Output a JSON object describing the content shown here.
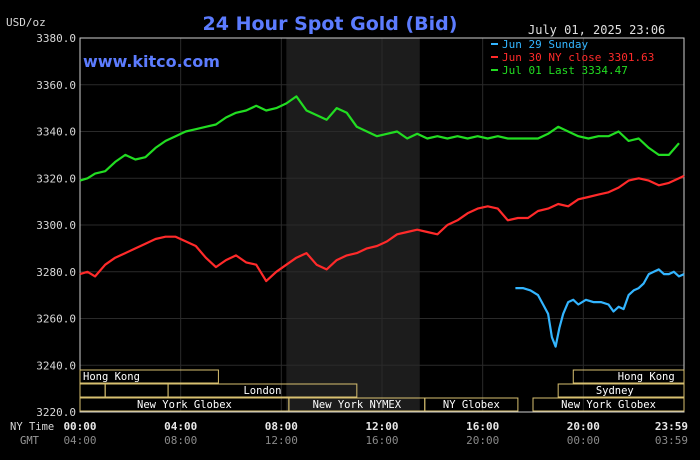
{
  "chart_data": {
    "type": "line",
    "title": "24 Hour Spot Gold (Bid)",
    "ylabel": "USD/oz",
    "brand": "www.kitco.com",
    "timestamp": "July 01, 2025 23:06",
    "ylim": [
      3220,
      3380
    ],
    "yticks": [
      "3220.0",
      "3240.0",
      "3260.0",
      "3280.0",
      "3300.0",
      "3320.0",
      "3340.0",
      "3360.0",
      "3380.0"
    ],
    "xlim_hours": [
      0,
      24
    ],
    "xticks_ny": [
      "00:00",
      "04:00",
      "08:00",
      "12:00",
      "16:00",
      "20:00",
      "23:59"
    ],
    "xticks_gmt": [
      "04:00",
      "08:00",
      "12:00",
      "16:00",
      "20:00",
      "00:00",
      "03:59"
    ],
    "row_label_ny": "NY Time",
    "row_label_gmt": "GMT",
    "grid": true,
    "legend_position": "top-right",
    "colors": {
      "background": "#000000",
      "grid": "#2a2a2a",
      "title": "#5c7cff",
      "brand": "#5c7cff",
      "text": "#d8d8d8",
      "shade": "#1c1c1c",
      "session_box": "#d8c070",
      "session_text": "#ffffff"
    },
    "series": [
      {
        "name": "Jun 29 Sunday",
        "color": "#33b5ff",
        "x": [
          17.3,
          17.6,
          17.9,
          18.2,
          18.4,
          18.6,
          18.75,
          18.9,
          19.05,
          19.2,
          19.4,
          19.6,
          19.8,
          20.1,
          20.4,
          20.7,
          21.0,
          21.2,
          21.4,
          21.6,
          21.8,
          22.0,
          22.2,
          22.4,
          22.6,
          22.8,
          23.0,
          23.2,
          23.4,
          23.6,
          23.8,
          24.0
        ],
        "y": [
          3273,
          3273,
          3272,
          3270,
          3266,
          3262,
          3252,
          3248,
          3256,
          3262,
          3267,
          3268,
          3266,
          3268,
          3267,
          3267,
          3266,
          3263,
          3265,
          3264,
          3270,
          3272,
          3273,
          3275,
          3279,
          3280,
          3281,
          3279,
          3279,
          3280,
          3278,
          3279
        ]
      },
      {
        "name": "Jun 30 NY close 3301.63",
        "color": "#ff2a2a",
        "x": [
          0.0,
          0.3,
          0.6,
          1.0,
          1.4,
          1.8,
          2.2,
          2.6,
          3.0,
          3.4,
          3.8,
          4.2,
          4.6,
          5.0,
          5.4,
          5.8,
          6.2,
          6.6,
          7.0,
          7.4,
          7.8,
          8.2,
          8.6,
          9.0,
          9.4,
          9.8,
          10.2,
          10.6,
          11.0,
          11.4,
          11.8,
          12.2,
          12.6,
          13.0,
          13.4,
          13.8,
          14.2,
          14.6,
          15.0,
          15.4,
          15.8,
          16.2,
          16.6,
          17.0,
          17.4,
          17.8,
          18.2,
          18.6,
          19.0,
          19.4,
          19.8,
          20.2,
          20.6,
          21.0,
          21.4,
          21.8,
          22.2,
          22.6,
          23.0,
          23.4,
          23.8,
          24.0
        ],
        "y": [
          3279,
          3280,
          3278,
          3283,
          3286,
          3288,
          3290,
          3292,
          3294,
          3295,
          3295,
          3293,
          3291,
          3286,
          3282,
          3285,
          3287,
          3284,
          3283,
          3276,
          3280,
          3283,
          3286,
          3288,
          3283,
          3281,
          3285,
          3287,
          3288,
          3290,
          3291,
          3293,
          3296,
          3297,
          3298,
          3297,
          3296,
          3300,
          3302,
          3305,
          3307,
          3308,
          3307,
          3302,
          3303,
          3303,
          3306,
          3307,
          3309,
          3308,
          3311,
          3312,
          3313,
          3314,
          3316,
          3319,
          3320,
          3319,
          3317,
          3318,
          3320,
          3321
        ]
      },
      {
        "name": "Jul 01 Last 3334.47",
        "color": "#22dd22",
        "x": [
          0.0,
          0.3,
          0.6,
          1.0,
          1.4,
          1.8,
          2.2,
          2.6,
          3.0,
          3.4,
          3.8,
          4.2,
          4.6,
          5.0,
          5.4,
          5.8,
          6.2,
          6.6,
          7.0,
          7.4,
          7.8,
          8.2,
          8.6,
          9.0,
          9.4,
          9.8,
          10.2,
          10.6,
          11.0,
          11.4,
          11.8,
          12.2,
          12.6,
          13.0,
          13.4,
          13.8,
          14.2,
          14.6,
          15.0,
          15.4,
          15.8,
          16.2,
          16.6,
          17.0,
          17.4,
          17.8,
          18.2,
          18.6,
          19.0,
          19.4,
          19.8,
          20.2,
          20.6,
          21.0,
          21.4,
          21.8,
          22.2,
          22.6,
          23.0,
          23.4,
          23.8
        ],
        "y": [
          3319,
          3320,
          3322,
          3323,
          3327,
          3330,
          3328,
          3329,
          3333,
          3336,
          3338,
          3340,
          3341,
          3342,
          3343,
          3346,
          3348,
          3349,
          3351,
          3349,
          3350,
          3352,
          3355,
          3349,
          3347,
          3345,
          3350,
          3348,
          3342,
          3340,
          3338,
          3339,
          3340,
          3337,
          3339,
          3337,
          3338,
          3337,
          3338,
          3337,
          3338,
          3337,
          3338,
          3337,
          3337,
          3337,
          3337,
          3339,
          3342,
          3340,
          3338,
          3337,
          3338,
          3338,
          3340,
          3336,
          3337,
          3333,
          3330,
          3330,
          3335
        ]
      }
    ],
    "nymex_shade_hours": [
      8.2,
      13.5
    ],
    "sessions": [
      {
        "label": "Hong Kong",
        "row": 0,
        "segments": [
          [
            0,
            5.5
          ],
          [
            19.6,
            24
          ]
        ],
        "labels_at": [
          [
            0,
            2.5
          ],
          [
            21.5,
            23.5
          ]
        ]
      },
      {
        "label": "London",
        "row": 1,
        "segments": [
          [
            0,
            1.0
          ],
          [
            1.0,
            3.5
          ],
          [
            3.5,
            11.0
          ],
          [
            19.0,
            24
          ]
        ],
        "labels_at": [
          [
            3.5,
            11.0
          ],
          [
            19.5,
            23.0
          ]
        ],
        "labels_override": [
          "London",
          "Sydney"
        ]
      },
      {
        "label": "New York Globex",
        "row": 2,
        "segments": [
          [
            0,
            8.3
          ],
          [
            8.3,
            13.7
          ],
          [
            13.7,
            17.4
          ],
          [
            18.0,
            24
          ]
        ],
        "labels_at": [
          [
            0,
            8.3
          ],
          [
            8.3,
            13.7
          ],
          [
            13.7,
            17.4
          ],
          [
            18.0,
            24
          ]
        ],
        "labels_override": [
          "New York Globex",
          "New York NYMEX",
          "NY Globex",
          "New York Globex"
        ]
      }
    ]
  }
}
